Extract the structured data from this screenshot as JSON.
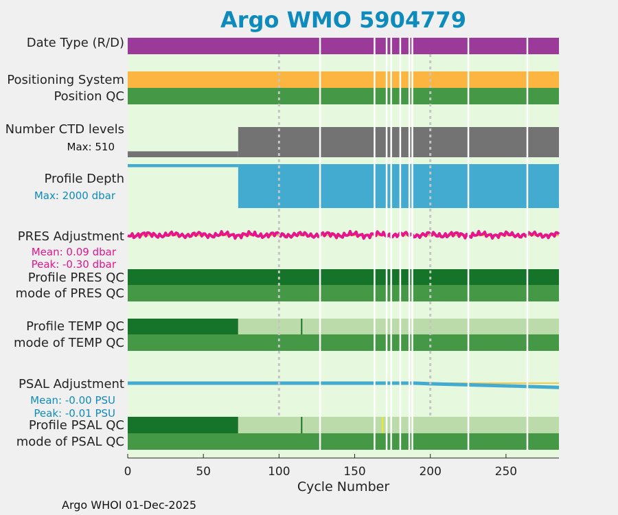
{
  "title": "Argo WMO 5904779",
  "footer": "Argo WHOI 01-Dec-2025",
  "colors": {
    "title": "#0e8bbd",
    "background": "#e6f8de",
    "date_type": "#9b3a98",
    "positioning": "#fbb540",
    "qc_good": "#459845",
    "qc_dark": "#16732a",
    "qc_light": "#bcdbaa",
    "ctd": "#737373",
    "depth": "#43aad0",
    "pres_adj": "#e8148c",
    "psal_adj": "#43aad0",
    "reference_line": "#f2c94c",
    "flag_yellow": "#f1ea1a",
    "gap": "#ffffff"
  },
  "panels": {
    "date_type": "Date Type (R/D)",
    "positioning_system": "Positioning System",
    "position_qc": "Position QC",
    "ctd_levels": "Number CTD levels",
    "ctd_max": "Max: 510",
    "profile_depth": "Profile Depth",
    "depth_max": "Max: 2000 dbar",
    "pres_adjustment": "PRES Adjustment",
    "pres_mean": "Mean: 0.09 dbar",
    "pres_peak": "Peak: -0.30 dbar",
    "profile_pres_qc": "Profile PRES QC",
    "mode_pres_qc": "mode of PRES QC",
    "profile_temp_qc": "Profile TEMP QC",
    "mode_temp_qc": "mode of TEMP QC",
    "psal_adjustment": "PSAL Adjustment",
    "psal_mean": "Mean: -0.00 PSU",
    "psal_peak": "Peak: -0.01 PSU",
    "profile_psal_qc": "Profile PSAL QC",
    "mode_psal_qc": "mode of PSAL QC"
  },
  "chart_data": {
    "type": "bar",
    "title": "Argo WMO 5904779",
    "xlabel": "Cycle Number",
    "xlim": [
      0,
      285
    ],
    "xticks": [
      0,
      50,
      100,
      150,
      200,
      250
    ],
    "xtick_labels": [
      "0",
      "50",
      "100",
      "150",
      "200",
      "250"
    ],
    "reference_cycles": [
      100,
      200
    ],
    "missing_cycles": [
      127,
      163,
      171,
      174,
      180,
      186,
      188,
      225,
      264
    ],
    "ctd_levels": {
      "max": 510,
      "segments": [
        {
          "from": 0,
          "to": 73,
          "value": 100
        },
        {
          "from": 73,
          "to": 285,
          "value": 510
        }
      ]
    },
    "profile_depth": {
      "max": 2000,
      "segments": [
        {
          "from": 0,
          "to": 73,
          "value": 140
        },
        {
          "from": 73,
          "to": 285,
          "value": 2000
        }
      ]
    },
    "pres_adjustment": {
      "mean": 0.09,
      "peak": -0.3
    },
    "psal_adjustment": {
      "mean": -0.0,
      "peak": -0.01,
      "points": [
        [
          0,
          0.0
        ],
        [
          190,
          0.0
        ],
        [
          200,
          -0.001
        ],
        [
          230,
          -0.003
        ],
        [
          260,
          -0.005
        ],
        [
          285,
          -0.007
        ]
      ]
    },
    "profile_temp_qc": [
      {
        "from": 0,
        "to": 73,
        "grade": "A"
      },
      {
        "from": 73,
        "to": 285,
        "grade": "F"
      }
    ],
    "profile_psal_qc": [
      {
        "from": 0,
        "to": 73,
        "grade": "A"
      },
      {
        "from": 73,
        "to": 285,
        "grade": "F"
      }
    ],
    "psal_qc_flags": [
      {
        "cycle": 168,
        "color": "yellow"
      }
    ]
  }
}
